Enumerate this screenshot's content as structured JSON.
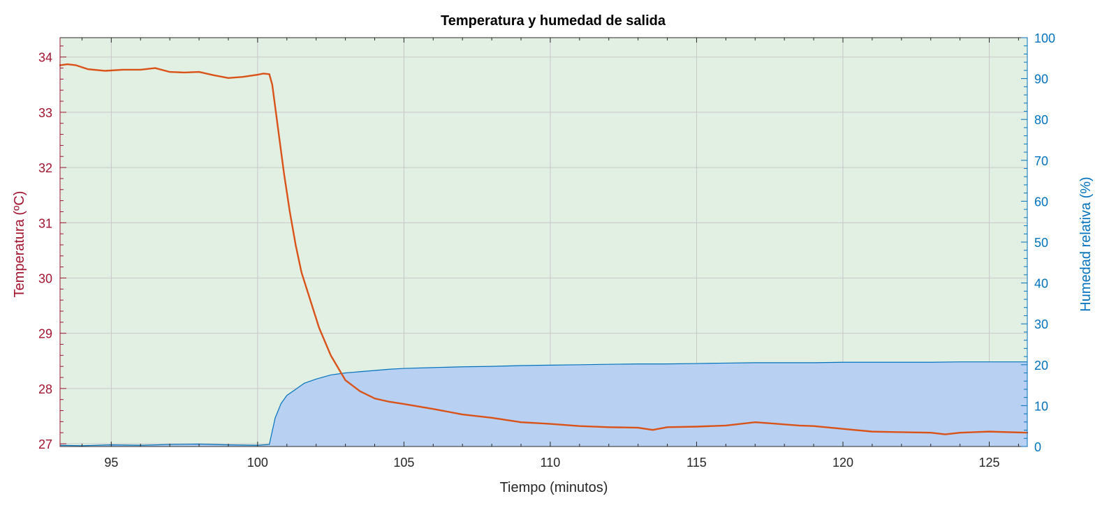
{
  "chart_data": {
    "type": "line",
    "title": "Temperatura y humedad de salida",
    "xlabel": "Tiempo (minutos)",
    "ylabel_left": "Temperatura (ºC)",
    "ylabel_right": "Humedad relativa (%)",
    "xlim": [
      93.25,
      126.3
    ],
    "ylim_left": [
      26.95,
      34.35
    ],
    "ylim_right": [
      0,
      100
    ],
    "x_ticks": [
      "95",
      "100",
      "105",
      "110",
      "115",
      "120",
      "125"
    ],
    "y_left_ticks": [
      "27",
      "28",
      "29",
      "30",
      "31",
      "32",
      "33",
      "34"
    ],
    "y_right_ticks": [
      "0",
      "10",
      "20",
      "30",
      "40",
      "50",
      "60",
      "70",
      "80",
      "90",
      "100"
    ],
    "grid": true,
    "colors": {
      "background": "#e2efe3",
      "temperature": "#d95319",
      "humidity_line": "#0072bd",
      "humidity_fill": "#b8d1f3",
      "left_axis": "#a2142f",
      "right_axis": "#0072bd",
      "grid": "#c8c8c8"
    },
    "series": [
      {
        "axis": "left",
        "x": [
          93.25,
          93.5,
          93.8,
          94.2,
          94.8,
          95.4,
          96.0,
          96.5,
          97.0,
          97.5,
          98.0,
          98.5,
          99.0,
          99.5,
          100.0,
          100.2,
          100.4,
          100.5,
          100.7,
          100.9,
          101.1,
          101.3,
          101.5,
          101.8,
          102.1,
          102.5,
          103.0,
          103.5,
          104.0,
          104.5,
          105.0,
          106.0,
          107.0,
          108.0,
          109.0,
          110.0,
          111.0,
          112.0,
          113.0,
          113.5,
          114.0,
          115.0,
          116.0,
          117.0,
          117.5,
          118.0,
          118.5,
          119.0,
          120.0,
          121.0,
          122.0,
          123.0,
          123.5,
          124.0,
          125.0,
          126.3
        ],
        "values": [
          33.85,
          33.87,
          33.85,
          33.78,
          33.75,
          33.77,
          33.77,
          33.8,
          33.73,
          33.72,
          33.73,
          33.67,
          33.62,
          33.64,
          33.68,
          33.7,
          33.69,
          33.5,
          32.7,
          31.9,
          31.2,
          30.6,
          30.1,
          29.6,
          29.1,
          28.6,
          28.15,
          27.95,
          27.82,
          27.76,
          27.72,
          27.63,
          27.53,
          27.47,
          27.39,
          27.36,
          27.32,
          27.3,
          27.29,
          27.25,
          27.3,
          27.31,
          27.33,
          27.39,
          27.37,
          27.35,
          27.33,
          27.32,
          27.27,
          27.22,
          27.21,
          27.2,
          27.17,
          27.2,
          27.22,
          27.2
        ]
      },
      {
        "axis": "right",
        "x": [
          93.25,
          94.0,
          95.0,
          96.0,
          97.0,
          98.0,
          99.0,
          100.0,
          100.4,
          100.6,
          100.8,
          101.0,
          101.3,
          101.6,
          102.0,
          102.5,
          103.0,
          103.5,
          104.0,
          104.5,
          105.0,
          106.0,
          107.0,
          108.0,
          109.0,
          110.0,
          111.0,
          112.0,
          113.0,
          114.0,
          115.0,
          116.0,
          117.0,
          118.0,
          119.0,
          120.0,
          121.0,
          122.0,
          123.0,
          124.0,
          125.0,
          126.3
        ],
        "values": [
          0.3,
          0.2,
          0.4,
          0.3,
          0.5,
          0.6,
          0.4,
          0.3,
          0.5,
          7.0,
          10.5,
          12.5,
          14.0,
          15.5,
          16.5,
          17.5,
          18.0,
          18.3,
          18.6,
          18.9,
          19.1,
          19.3,
          19.5,
          19.6,
          19.8,
          19.9,
          20.0,
          20.1,
          20.2,
          20.2,
          20.3,
          20.4,
          20.5,
          20.5,
          20.5,
          20.6,
          20.6,
          20.6,
          20.6,
          20.7,
          20.7,
          20.7
        ]
      }
    ]
  }
}
